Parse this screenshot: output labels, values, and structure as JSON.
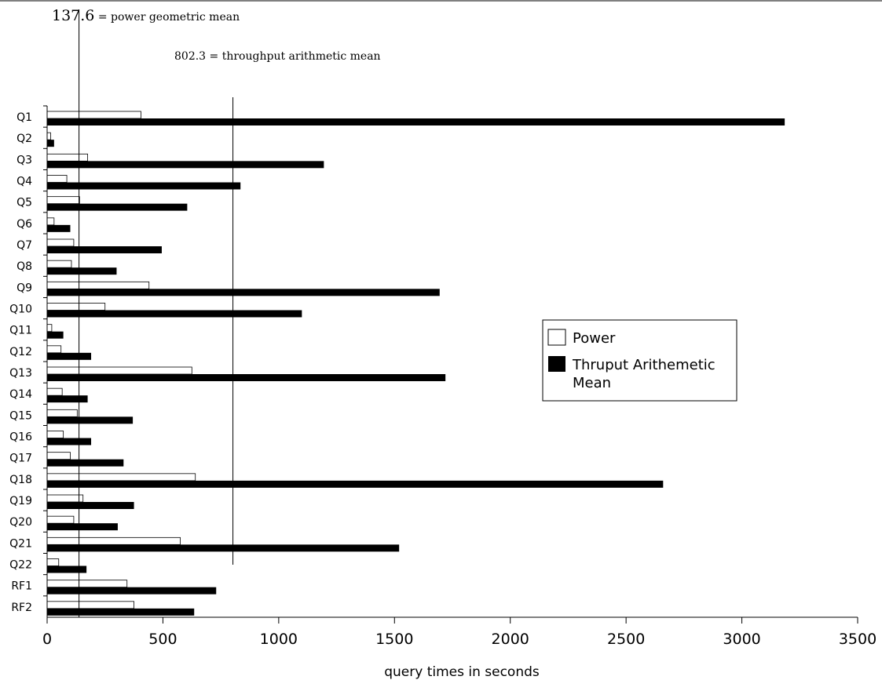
{
  "chart_data": {
    "type": "bar",
    "orientation": "horizontal",
    "categories": [
      "Q1",
      "Q2",
      "Q3",
      "Q4",
      "Q5",
      "Q6",
      "Q7",
      "Q8",
      "Q9",
      "Q10",
      "Q11",
      "Q12",
      "Q13",
      "Q14",
      "Q15",
      "Q16",
      "Q17",
      "Q18",
      "Q19",
      "Q20",
      "Q21",
      "Q22",
      "RF1",
      "RF2"
    ],
    "series": [
      {
        "name": "Power",
        "color": "#ffffff",
        "values": [
          405,
          15,
          175,
          85,
          140,
          30,
          115,
          105,
          440,
          250,
          20,
          60,
          625,
          65,
          130,
          70,
          100,
          640,
          155,
          115,
          575,
          50,
          345,
          375
        ]
      },
      {
        "name": "Thruput Arithemetic Mean",
        "color": "#000000",
        "values": [
          3185,
          30,
          1195,
          835,
          605,
          100,
          495,
          300,
          1695,
          1100,
          70,
          190,
          1720,
          175,
          370,
          190,
          330,
          2660,
          375,
          305,
          1520,
          170,
          730,
          635
        ]
      }
    ],
    "xlabel": "query times in seconds",
    "ylabel": "",
    "xlim": [
      0,
      3500
    ],
    "xticks": [
      0,
      500,
      1000,
      1500,
      2000,
      2500,
      3000,
      3500
    ],
    "grid": false,
    "legend_position": "right-middle",
    "reference_lines": [
      {
        "value": 137.6,
        "value_text": "137.6",
        "text": " = power geometric mean"
      },
      {
        "value": 802.3,
        "value_text": "802.3",
        "text": " = throughput arithmetic mean"
      }
    ]
  }
}
